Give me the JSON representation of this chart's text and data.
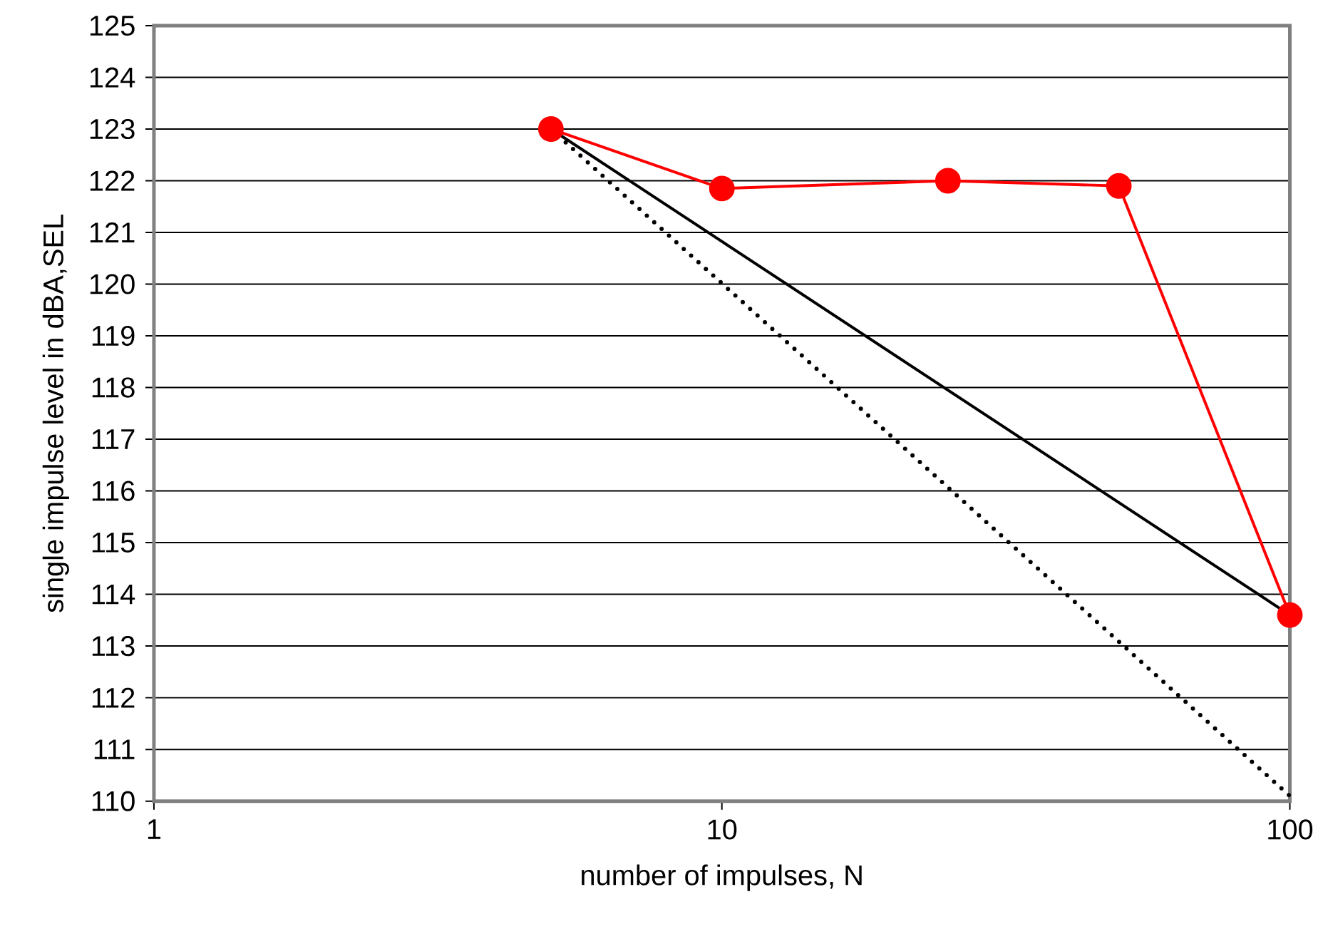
{
  "chart_data": {
    "type": "line",
    "xlabel": "number of impulses, N",
    "ylabel": "single impulse level in dBA,SEL",
    "log": "x",
    "grid": "y",
    "xlim": [
      1,
      100
    ],
    "xticks": [
      1,
      10,
      100
    ],
    "ylim": [
      110,
      125
    ],
    "yticks": [
      110,
      111,
      112,
      113,
      114,
      115,
      116,
      117,
      118,
      119,
      120,
      121,
      122,
      123,
      124,
      125
    ],
    "series": [
      {
        "color": "#ff0000",
        "marker": "circle",
        "line_style": "solid",
        "x": [
          5,
          10,
          25,
          50,
          100
        ],
        "values": [
          123,
          121.85,
          122,
          121.9,
          113.6
        ]
      },
      {
        "color": "#000000",
        "marker": "none",
        "line_style": "solid",
        "x": [
          5,
          100
        ],
        "values": [
          123,
          113.6
        ]
      },
      {
        "color": "#000000",
        "marker": "none",
        "line_style": "dotted",
        "x": [
          5,
          100
        ],
        "values": [
          123,
          110.1
        ]
      }
    ]
  }
}
